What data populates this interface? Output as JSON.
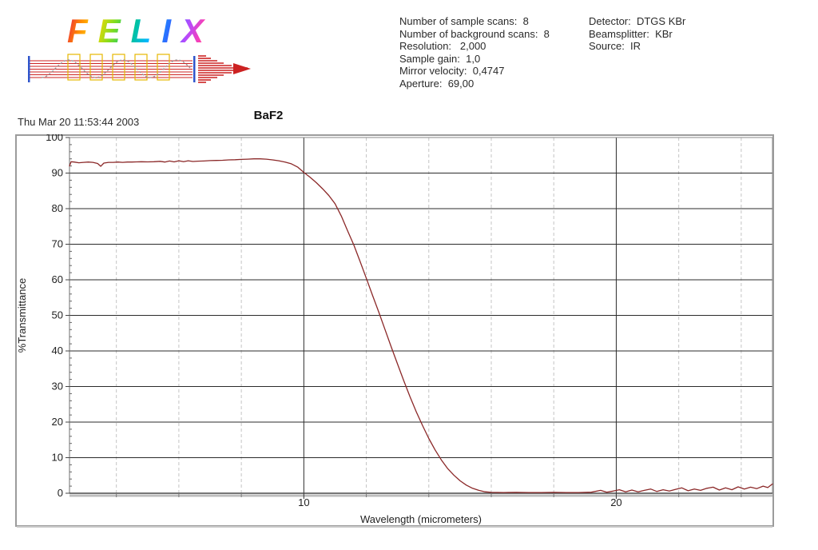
{
  "logo": {
    "text": "FELIX"
  },
  "acquisition": {
    "lines": [
      "Number of sample scans:  8",
      "Number of background scans:  8",
      "Resolution:   2,000",
      "Sample gain:  1,0",
      "Mirror velocity:  0,4747",
      "Aperture:  69,00"
    ]
  },
  "instrument": {
    "lines": [
      "Detector:  DTGS KBr",
      "Beamsplitter:  KBr",
      "Source:  IR"
    ]
  },
  "timestamp": "Thu Mar 20 11:53:44 2003",
  "chart_data": {
    "type": "line",
    "title": "BaF2",
    "xlabel": "Wavelength (micrometers)",
    "ylabel": "%Transmittance",
    "xlim": [
      2.5,
      25.0
    ],
    "ylim": [
      0,
      100
    ],
    "x_major_ticks": [
      10,
      20
    ],
    "x_minor_gridlines": [
      4,
      6,
      8,
      12,
      14,
      16,
      18,
      22,
      24
    ],
    "y_ticks": [
      0,
      10,
      20,
      30,
      40,
      50,
      60,
      70,
      80,
      90,
      100
    ],
    "grid": true,
    "legend_position": "none",
    "series": [
      {
        "name": "BaF2 transmittance",
        "color": "#8b2828",
        "points": [
          [
            2.5,
            92.0
          ],
          [
            2.55,
            93.2
          ],
          [
            2.65,
            93.1
          ],
          [
            2.8,
            92.9
          ],
          [
            2.95,
            93.0
          ],
          [
            3.1,
            93.1
          ],
          [
            3.25,
            93.0
          ],
          [
            3.4,
            92.7
          ],
          [
            3.5,
            91.9
          ],
          [
            3.6,
            92.8
          ],
          [
            3.75,
            93.0
          ],
          [
            3.9,
            93.0
          ],
          [
            4.05,
            93.1
          ],
          [
            4.2,
            93.0
          ],
          [
            4.35,
            93.1
          ],
          [
            4.5,
            93.1
          ],
          [
            4.65,
            93.15
          ],
          [
            4.8,
            93.2
          ],
          [
            5.0,
            93.15
          ],
          [
            5.2,
            93.2
          ],
          [
            5.4,
            93.3
          ],
          [
            5.55,
            93.1
          ],
          [
            5.7,
            93.4
          ],
          [
            5.85,
            93.15
          ],
          [
            6.0,
            93.45
          ],
          [
            6.15,
            93.2
          ],
          [
            6.3,
            93.45
          ],
          [
            6.45,
            93.25
          ],
          [
            6.6,
            93.35
          ],
          [
            6.8,
            93.4
          ],
          [
            7.0,
            93.5
          ],
          [
            7.2,
            93.55
          ],
          [
            7.4,
            93.6
          ],
          [
            7.6,
            93.7
          ],
          [
            7.8,
            93.75
          ],
          [
            8.0,
            93.85
          ],
          [
            8.2,
            93.9
          ],
          [
            8.4,
            94.0
          ],
          [
            8.6,
            94.0
          ],
          [
            8.8,
            93.9
          ],
          [
            9.0,
            93.7
          ],
          [
            9.2,
            93.45
          ],
          [
            9.4,
            93.1
          ],
          [
            9.6,
            92.6
          ],
          [
            9.8,
            91.7
          ],
          [
            10.0,
            90.2
          ],
          [
            10.2,
            88.8
          ],
          [
            10.4,
            87.3
          ],
          [
            10.6,
            85.6
          ],
          [
            10.8,
            83.7
          ],
          [
            11.0,
            81.4
          ],
          [
            11.2,
            77.9
          ],
          [
            11.4,
            73.8
          ],
          [
            11.6,
            69.8
          ],
          [
            11.8,
            65.2
          ],
          [
            12.0,
            60.4
          ],
          [
            12.2,
            55.6
          ],
          [
            12.4,
            50.9
          ],
          [
            12.6,
            46.0
          ],
          [
            12.8,
            41.1
          ],
          [
            13.0,
            36.3
          ],
          [
            13.2,
            31.6
          ],
          [
            13.4,
            27.1
          ],
          [
            13.6,
            22.9
          ],
          [
            13.8,
            19.0
          ],
          [
            14.0,
            15.4
          ],
          [
            14.2,
            12.2
          ],
          [
            14.4,
            9.4
          ],
          [
            14.6,
            7.0
          ],
          [
            14.8,
            5.1
          ],
          [
            15.0,
            3.5
          ],
          [
            15.2,
            2.3
          ],
          [
            15.4,
            1.4
          ],
          [
            15.6,
            0.8
          ],
          [
            15.8,
            0.4
          ],
          [
            16.0,
            0.25
          ],
          [
            16.4,
            0.2
          ],
          [
            16.8,
            0.25
          ],
          [
            17.2,
            0.2
          ],
          [
            17.6,
            0.2
          ],
          [
            18.0,
            0.25
          ],
          [
            18.4,
            0.2
          ],
          [
            18.8,
            0.2
          ],
          [
            19.2,
            0.3
          ],
          [
            19.5,
            0.8
          ],
          [
            19.7,
            0.3
          ],
          [
            19.9,
            0.6
          ],
          [
            20.1,
            1.0
          ],
          [
            20.3,
            0.4
          ],
          [
            20.5,
            0.9
          ],
          [
            20.7,
            0.4
          ],
          [
            20.9,
            0.8
          ],
          [
            21.1,
            1.2
          ],
          [
            21.3,
            0.5
          ],
          [
            21.5,
            1.0
          ],
          [
            21.7,
            0.6
          ],
          [
            21.9,
            1.1
          ],
          [
            22.1,
            1.5
          ],
          [
            22.3,
            0.7
          ],
          [
            22.5,
            1.2
          ],
          [
            22.7,
            0.8
          ],
          [
            22.9,
            1.4
          ],
          [
            23.1,
            1.7
          ],
          [
            23.3,
            0.9
          ],
          [
            23.5,
            1.5
          ],
          [
            23.7,
            1.0
          ],
          [
            23.9,
            1.8
          ],
          [
            24.1,
            1.2
          ],
          [
            24.3,
            1.7
          ],
          [
            24.5,
            1.3
          ],
          [
            24.7,
            2.0
          ],
          [
            24.85,
            1.6
          ],
          [
            25.0,
            2.6
          ]
        ]
      }
    ]
  },
  "colors": {
    "curve": "#8b2828",
    "solid_grid": "#2b2b2b",
    "dashed_grid": "#c4c4c4",
    "frame": "#9c9c9c",
    "axis": "#4a4a4a",
    "beam_red": "#cc2222",
    "beam_blue": "#2f55cc",
    "beam_yellow": "#e6b800",
    "beam_gray": "#9a9a9a"
  }
}
